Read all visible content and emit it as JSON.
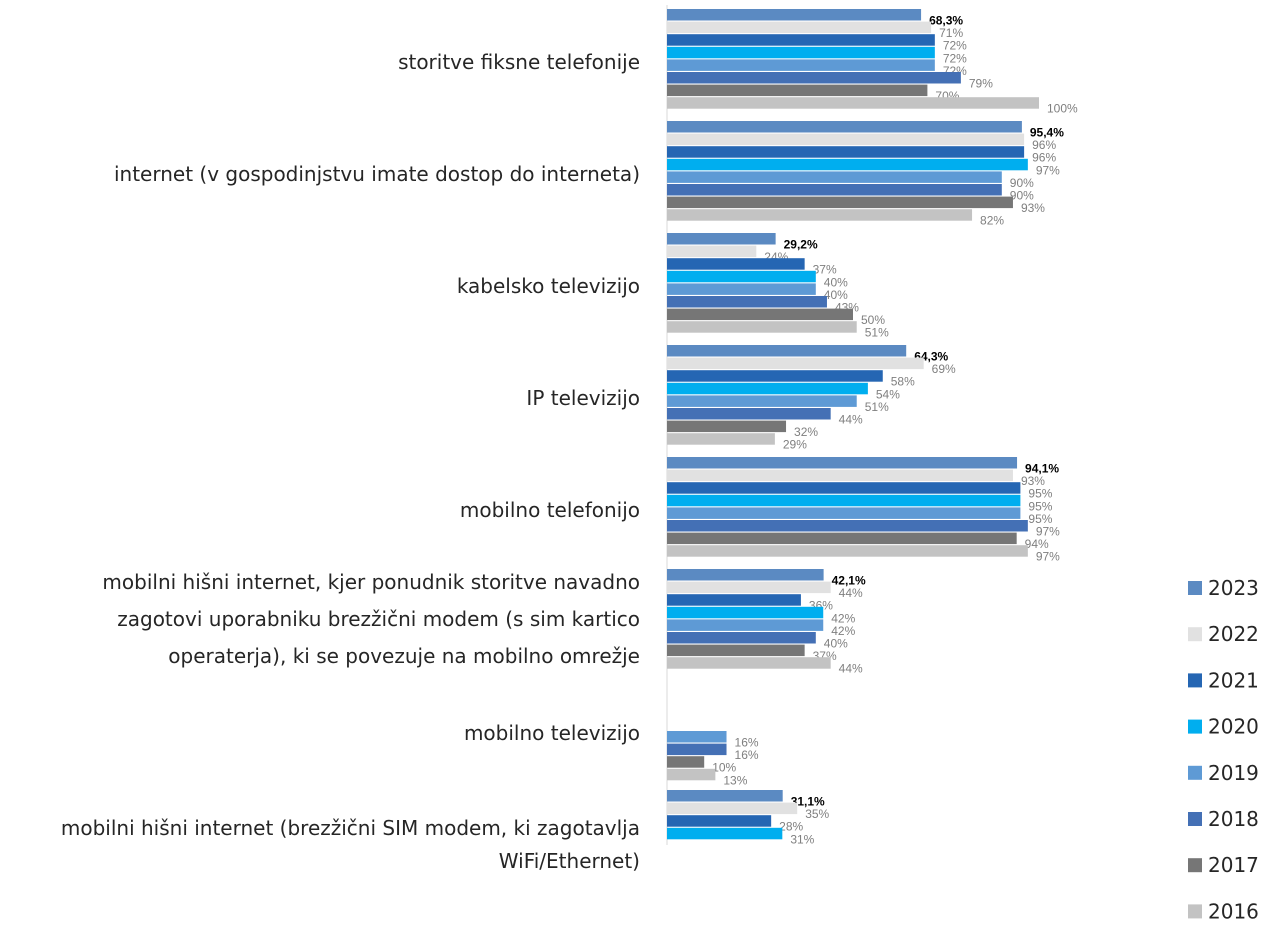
{
  "chart_data": {
    "type": "bar",
    "orientation": "horizontal",
    "xlim": [
      0,
      100
    ],
    "unit": "%",
    "legend_position": "right",
    "categories": [
      "storitve fiksne telefonije",
      "internet (v gospodinjstvu imate dostop do interneta)",
      "kabelsko televizijo",
      "IP televizijo",
      "mobilno telefonijo",
      "mobilni hišni internet, kjer ponudnik storitve navadno zagotovi uporabniku brezžični modem (s sim kartico operaterja), ki se povezuje na mobilno omrežje",
      "mobilno televizijo",
      "mobilni hišni internet (brezžični SIM modem, ki zagotavlja WiFi/Ethernet)"
    ],
    "category_lines": [
      [
        "storitve fiksne telefonije"
      ],
      [
        "internet (v gospodinjstvu imate dostop do interneta)"
      ],
      [
        "kabelsko televizijo"
      ],
      [
        "IP televizijo"
      ],
      [
        "mobilno telefonijo"
      ],
      [
        "mobilni hišni internet, kjer ponudnik storitve navadno",
        "zagotovi uporabniku brezžični modem (s sim kartico",
        "operaterja), ki se povezuje na mobilno omrežje"
      ],
      [
        "mobilno televizijo"
      ],
      [
        "mobilni hišni internet (brezžični SIM modem, ki zagotavlja",
        "WiFi/Ethernet)"
      ]
    ],
    "series": [
      {
        "name": "2023",
        "color": "#5b8ac2",
        "values": [
          68.3,
          95.4,
          29.2,
          64.3,
          94.1,
          42.1,
          null,
          31.1
        ],
        "labels": [
          "68,3%",
          "95,4%",
          "29,2%",
          "64,3%",
          "94,1%",
          "42,1%",
          null,
          "31,1%"
        ],
        "bold": true
      },
      {
        "name": "2022",
        "color": "#e1e1e1",
        "values": [
          71,
          96,
          24,
          69,
          93,
          44,
          null,
          35
        ],
        "labels": [
          "71%",
          "96%",
          "24%",
          "69%",
          "93%",
          "44%",
          null,
          "35%"
        ]
      },
      {
        "name": "2021",
        "color": "#2566b3",
        "values": [
          72,
          96,
          37,
          58,
          95,
          36,
          null,
          28
        ],
        "labels": [
          "72%",
          "96%",
          "37%",
          "58%",
          "95%",
          "36%",
          null,
          "28%"
        ]
      },
      {
        "name": "2020",
        "color": "#00aeef",
        "values": [
          72,
          97,
          40,
          54,
          95,
          42,
          null,
          31
        ],
        "labels": [
          "72%",
          "97%",
          "40%",
          "54%",
          "95%",
          "42%",
          null,
          "31%"
        ]
      },
      {
        "name": "2019",
        "color": "#5e9ad5",
        "values": [
          72,
          90,
          40,
          51,
          95,
          42,
          16,
          null
        ],
        "labels": [
          "72%",
          "90%",
          "40%",
          "51%",
          "95%",
          "42%",
          "16%",
          null
        ]
      },
      {
        "name": "2018",
        "color": "#4470b5",
        "values": [
          79,
          90,
          43,
          44,
          97,
          40,
          16,
          null
        ],
        "labels": [
          "79%",
          "90%",
          "43%",
          "44%",
          "97%",
          "40%",
          "16%",
          null
        ]
      },
      {
        "name": "2017",
        "color": "#767676",
        "values": [
          70,
          93,
          50,
          32,
          94,
          37,
          10,
          null
        ],
        "labels": [
          "70%",
          "93%",
          "50%",
          "32%",
          "94%",
          "37%",
          "10%",
          null
        ]
      },
      {
        "name": "2016",
        "color": "#c3c3c3",
        "values": [
          100,
          82,
          51,
          29,
          97,
          44,
          13,
          null
        ],
        "labels": [
          "100%",
          "82%",
          "51%",
          "29%",
          "97%",
          "44%",
          "13%",
          null
        ]
      }
    ]
  }
}
